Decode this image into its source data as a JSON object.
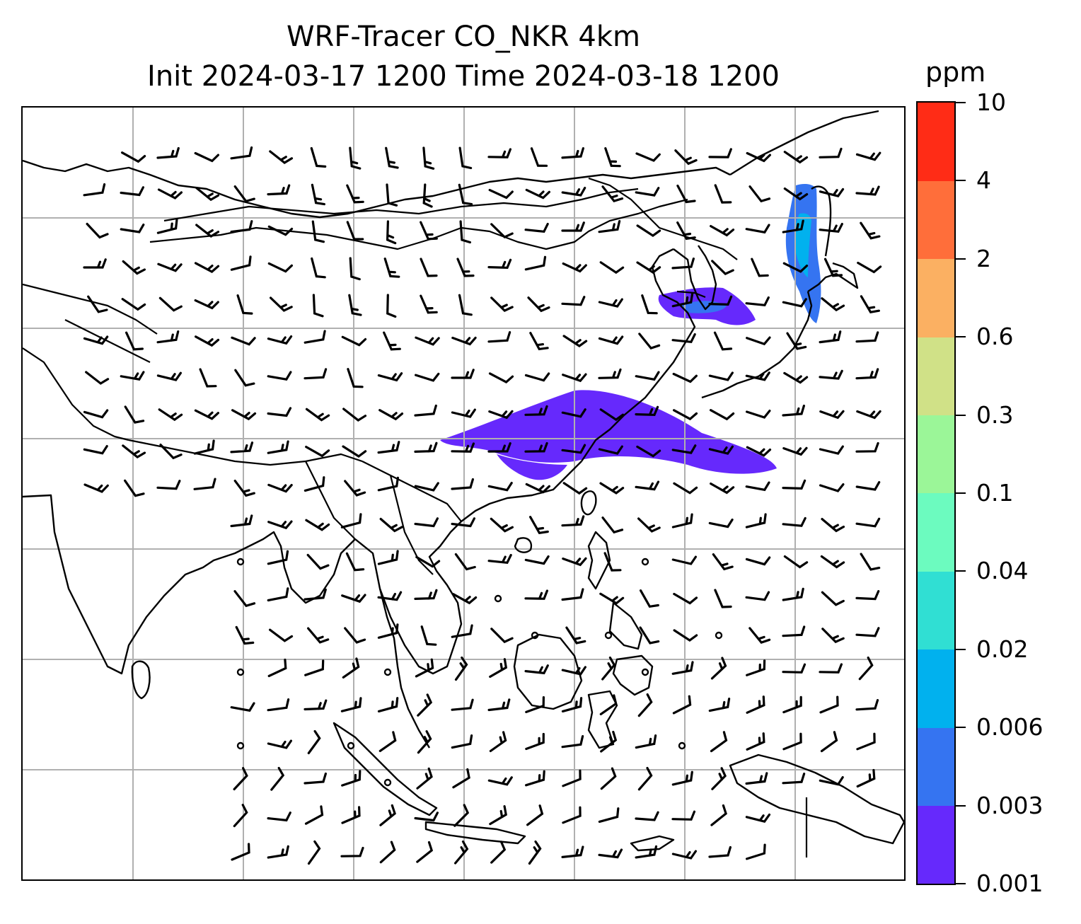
{
  "title": {
    "line1": "WRF-Tracer CO_NKR 4km",
    "line2": "Init 2024-03-17 1200 Time 2024-03-18 1200"
  },
  "map": {
    "grid": "on",
    "grid_color": "#b0b0b0",
    "coastline_color": "#000000",
    "overlays": [
      "coastlines",
      "country borders",
      "wind barbs",
      "CO tracer shading"
    ]
  },
  "colorbar": {
    "unit": "ppm",
    "orientation": "vertical",
    "location": "right",
    "levels": [
      {
        "label": "0.001",
        "from": "0.001",
        "to": "0.003",
        "color": "#6629fc"
      },
      {
        "label": "0.003",
        "from": "0.003",
        "to": "0.006",
        "color": "#3574f1"
      },
      {
        "label": "0.006",
        "from": "0.006",
        "to": "0.02",
        "color": "#01b1ee"
      },
      {
        "label": "0.02",
        "from": "0.02",
        "to": "0.04",
        "color": "#30dfd3"
      },
      {
        "label": "0.04",
        "from": "0.04",
        "to": "0.1",
        "color": "#6cfbbf"
      },
      {
        "label": "0.1",
        "from": "0.1",
        "to": "0.3",
        "color": "#9bf698"
      },
      {
        "label": "0.3",
        "from": "0.3",
        "to": "0.6",
        "color": "#d0e187"
      },
      {
        "label": "0.6",
        "from": "0.6",
        "to": "2",
        "color": "#fbb062"
      },
      {
        "label": "2",
        "from": "2",
        "to": "4",
        "color": "#ff6e3a"
      },
      {
        "label": "4",
        "from": "4",
        "to": "10",
        "color": "#ff2c16"
      },
      {
        "label": "10",
        "from": "10",
        "to": "",
        "color": ""
      }
    ]
  },
  "tracer": {
    "colors": {
      "low": "#6629fc",
      "mid": "#3574f1",
      "high": "#01b1ee"
    }
  }
}
